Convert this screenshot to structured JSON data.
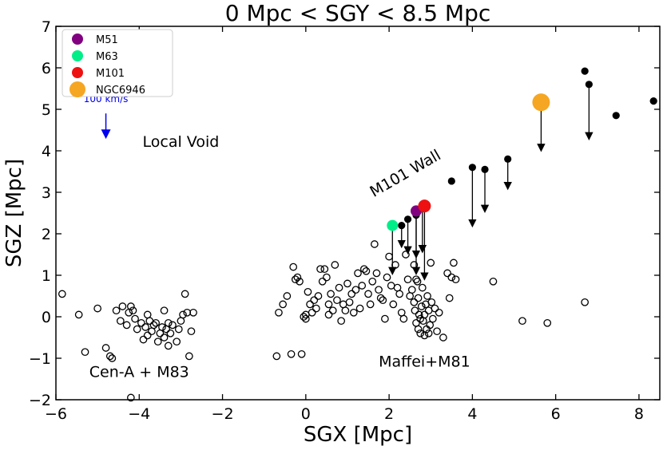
{
  "chart_data": {
    "type": "scatter",
    "title": "0 Mpc < SGY < 8.5 Mpc",
    "xlabel": "SGX [Mpc]",
    "ylabel": "SGZ [Mpc]",
    "xlim": [
      -6,
      8.5
    ],
    "ylim": [
      -2,
      7
    ],
    "x_ticks": [
      -6,
      -4,
      -2,
      0,
      2,
      4,
      6,
      8
    ],
    "x_tick_labels": [
      "−6",
      "−4",
      "−2",
      "0",
      "2",
      "4",
      "6",
      "8"
    ],
    "y_ticks": [
      -2,
      -1,
      0,
      1,
      2,
      3,
      4,
      5,
      6,
      7
    ],
    "y_tick_labels": [
      "−2",
      "−1",
      "0",
      "1",
      "2",
      "3",
      "4",
      "5",
      "6",
      "7"
    ],
    "legend": {
      "position": "top-left",
      "entries": [
        {
          "label": "M51",
          "color": "#800080"
        },
        {
          "label": "M63",
          "color": "#00ee88"
        },
        {
          "label": "M101",
          "color": "#ee1111"
        },
        {
          "label": "NGC6946",
          "color": "#f5a623"
        }
      ]
    },
    "scale_arrow": {
      "label": "100 km/s",
      "x": -4.8,
      "y_start": 4.9,
      "y_end": 4.4,
      "color": "#0000ee"
    },
    "annotations": [
      {
        "text": "Local Void",
        "x": -3.0,
        "y": 4.1
      },
      {
        "text": "M101 Wall",
        "x": 2.45,
        "y": 3.35,
        "rotation": -30
      },
      {
        "text": "Cen-A + M83",
        "x": -4.0,
        "y": -1.45
      },
      {
        "text": "Maffei+M81",
        "x": 2.85,
        "y": -1.2
      }
    ],
    "highlighted": [
      {
        "name": "M51",
        "x": 2.65,
        "y": 2.55,
        "color": "#800080",
        "dy": -1.45
      },
      {
        "name": "M63",
        "x": 2.08,
        "y": 2.2,
        "color": "#00ee88",
        "dy": -1.1
      },
      {
        "name": "M101",
        "x": 2.85,
        "y": 2.67,
        "color": "#ee1111",
        "dy": -1.7
      },
      {
        "name": "NGC6946",
        "x": 5.65,
        "y": 5.17,
        "color": "#f5a623",
        "dy": -1.1
      }
    ],
    "wall_galaxies": [
      {
        "x": 2.3,
        "y": 2.2,
        "dy": -0.45
      },
      {
        "x": 2.45,
        "y": 2.35,
        "dy": -0.75
      },
      {
        "x": 2.65,
        "y": 2.45,
        "dy": -0.95
      },
      {
        "x": 2.8,
        "y": 2.68,
        "dy": -1.05
      },
      {
        "x": 3.5,
        "y": 3.27,
        "dy": 0
      },
      {
        "x": 4.0,
        "y": 3.6,
        "dy": -1.35
      },
      {
        "x": 4.3,
        "y": 3.55,
        "dy": -0.95
      },
      {
        "x": 4.85,
        "y": 3.8,
        "dy": -0.65
      },
      {
        "x": 6.7,
        "y": 5.92,
        "dy": 0
      },
      {
        "x": 6.8,
        "y": 5.6,
        "dy": -1.25
      },
      {
        "x": 7.45,
        "y": 4.85,
        "dy": 0
      },
      {
        "x": 8.35,
        "y": 5.2,
        "dy": 0
      }
    ],
    "field_galaxies": [
      [
        -5.85,
        0.55
      ],
      [
        -5.45,
        0.05
      ],
      [
        -5.3,
        -0.85
      ],
      [
        -5.0,
        0.2
      ],
      [
        -4.8,
        -0.75
      ],
      [
        -4.7,
        -0.95
      ],
      [
        -4.65,
        -1.0
      ],
      [
        -4.55,
        0.15
      ],
      [
        -4.45,
        -0.1
      ],
      [
        -4.4,
        0.25
      ],
      [
        -4.3,
        -0.2
      ],
      [
        -4.25,
        0.1
      ],
      [
        -4.2,
        0.25
      ],
      [
        -4.15,
        0.15
      ],
      [
        -4.1,
        -0.05
      ],
      [
        -4.05,
        -0.3
      ],
      [
        -3.95,
        -0.15
      ],
      [
        -3.9,
        -0.55
      ],
      [
        -3.85,
        -0.25
      ],
      [
        -3.8,
        -0.45
      ],
      [
        -3.75,
        -0.1
      ],
      [
        -3.7,
        -0.35
      ],
      [
        -3.65,
        -0.2
      ],
      [
        -3.6,
        -0.15
      ],
      [
        -3.55,
        -0.6
      ],
      [
        -3.5,
        -0.4
      ],
      [
        -3.45,
        -0.25
      ],
      [
        -3.4,
        -0.5
      ],
      [
        -3.35,
        -0.3
      ],
      [
        -3.3,
        -0.15
      ],
      [
        -3.25,
        -0.4
      ],
      [
        -3.2,
        -0.2
      ],
      [
        -3.1,
        -0.6
      ],
      [
        -3.05,
        -0.3
      ],
      [
        -3.0,
        -0.1
      ],
      [
        -2.95,
        0.05
      ],
      [
        -2.9,
        0.55
      ],
      [
        -2.85,
        0.1
      ],
      [
        -2.8,
        -0.95
      ],
      [
        -2.75,
        -0.35
      ],
      [
        -2.7,
        0.1
      ],
      [
        -3.4,
        0.15
      ],
      [
        -3.3,
        -0.7
      ],
      [
        -4.2,
        -1.95
      ],
      [
        -3.8,
        0.05
      ],
      [
        -0.7,
        -0.95
      ],
      [
        -0.65,
        0.1
      ],
      [
        -0.55,
        0.3
      ],
      [
        -0.45,
        0.5
      ],
      [
        -0.35,
        -0.9
      ],
      [
        -0.3,
        1.2
      ],
      [
        -0.25,
        0.9
      ],
      [
        -0.2,
        0.95
      ],
      [
        -0.15,
        0.85
      ],
      [
        -0.1,
        -0.9
      ],
      [
        -0.05,
        0.0
      ],
      [
        0.0,
        -0.05
      ],
      [
        0.0,
        0.05
      ],
      [
        0.05,
        0.6
      ],
      [
        0.1,
        0.3
      ],
      [
        0.15,
        0.1
      ],
      [
        0.2,
        0.4
      ],
      [
        0.25,
        0.2
      ],
      [
        0.3,
        0.5
      ],
      [
        0.35,
        1.15
      ],
      [
        0.4,
        0.85
      ],
      [
        0.45,
        1.15
      ],
      [
        0.5,
        0.95
      ],
      [
        0.55,
        0.3
      ],
      [
        0.55,
        0.05
      ],
      [
        0.6,
        0.55
      ],
      [
        0.65,
        0.15
      ],
      [
        0.7,
        1.25
      ],
      [
        0.75,
        0.4
      ],
      [
        0.8,
        0.7
      ],
      [
        0.85,
        -0.1
      ],
      [
        0.9,
        0.3
      ],
      [
        0.95,
        0.15
      ],
      [
        1.0,
        0.8
      ],
      [
        1.05,
        0.35
      ],
      [
        1.1,
        0.55
      ],
      [
        1.15,
        0.1
      ],
      [
        1.2,
        0.65
      ],
      [
        1.25,
        1.05
      ],
      [
        1.3,
        0.2
      ],
      [
        1.35,
        0.75
      ],
      [
        1.4,
        1.15
      ],
      [
        1.45,
        1.1
      ],
      [
        1.5,
        0.55
      ],
      [
        1.55,
        0.3
      ],
      [
        1.6,
        0.85
      ],
      [
        1.65,
        1.75
      ],
      [
        1.7,
        1.05
      ],
      [
        1.75,
        0.65
      ],
      [
        1.8,
        0.45
      ],
      [
        1.85,
        0.4
      ],
      [
        1.9,
        -0.05
      ],
      [
        1.95,
        0.95
      ],
      [
        2.0,
        1.45
      ],
      [
        2.05,
        0.75
      ],
      [
        2.1,
        0.3
      ],
      [
        2.15,
        1.25
      ],
      [
        2.2,
        0.7
      ],
      [
        2.25,
        0.55
      ],
      [
        2.3,
        0.1
      ],
      [
        2.35,
        -0.05
      ],
      [
        2.4,
        1.5
      ],
      [
        2.45,
        0.9
      ],
      [
        2.5,
        0.5
      ],
      [
        2.55,
        0.65
      ],
      [
        2.6,
        0.35
      ],
      [
        2.62,
        0.15
      ],
      [
        2.65,
        -0.15
      ],
      [
        2.68,
        0.85
      ],
      [
        2.7,
        0.45
      ],
      [
        2.72,
        0.05
      ],
      [
        2.75,
        -0.05
      ],
      [
        2.78,
        0.25
      ],
      [
        2.8,
        0.7
      ],
      [
        2.82,
        -0.1
      ],
      [
        2.85,
        0.05
      ],
      [
        2.88,
        0.3
      ],
      [
        2.9,
        -0.3
      ],
      [
        2.92,
        0.5
      ],
      [
        2.95,
        0.15
      ],
      [
        2.98,
        -0.2
      ],
      [
        3.0,
        1.3
      ],
      [
        3.02,
        0.35
      ],
      [
        3.05,
        -0.05
      ],
      [
        3.1,
        0.2
      ],
      [
        3.15,
        -0.35
      ],
      [
        3.2,
        0.1
      ],
      [
        3.3,
        -0.5
      ],
      [
        3.4,
        1.05
      ],
      [
        3.45,
        0.45
      ],
      [
        3.5,
        0.95
      ],
      [
        3.55,
        1.3
      ],
      [
        3.6,
        0.9
      ],
      [
        2.75,
        -0.4
      ],
      [
        2.85,
        -0.45
      ],
      [
        2.7,
        -0.3
      ],
      [
        2.95,
        -0.4
      ],
      [
        2.6,
        1.25
      ],
      [
        2.65,
        0.9
      ],
      [
        4.5,
        0.85
      ],
      [
        5.2,
        -0.1
      ],
      [
        5.8,
        -0.15
      ],
      [
        6.7,
        0.35
      ]
    ]
  }
}
